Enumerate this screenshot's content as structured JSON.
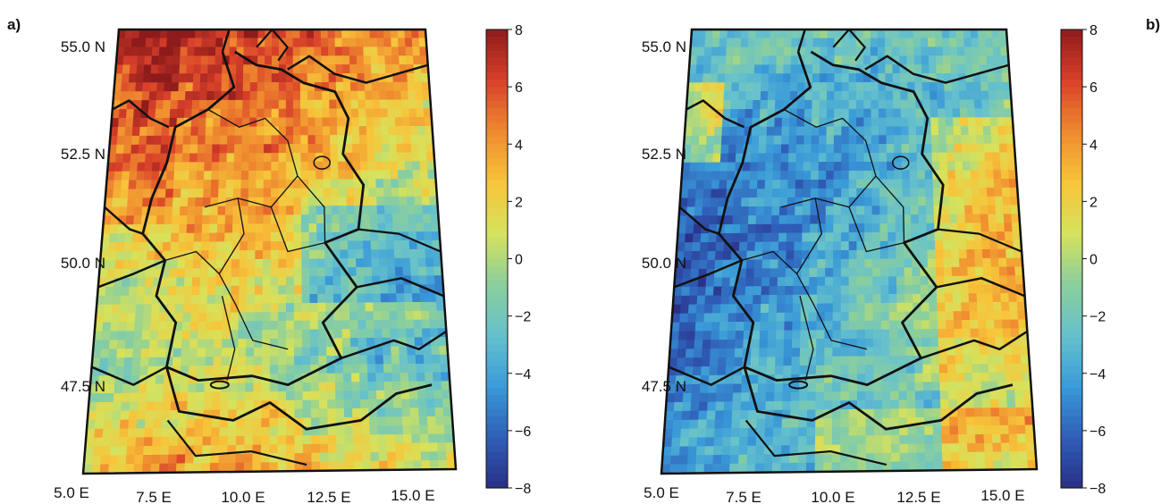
{
  "panels": [
    {
      "label": "a)",
      "lat_labels": [
        "55.0 N",
        "52.5 N",
        "50.0 N",
        "47.5 N"
      ],
      "lon_labels": [
        "5.0 E",
        "7.5 E",
        "10.0 E",
        "12.5 E",
        "15.0 E"
      ],
      "pattern": "warm-north"
    },
    {
      "label": "b)",
      "lat_labels": [
        "55.0 N",
        "52.5 N",
        "50.0 N",
        "47.5 N"
      ],
      "lon_labels": [
        "5.0 E",
        "7.5 E",
        "10.0 E",
        "12.5 E",
        "15.0 E"
      ],
      "pattern": "cool-west"
    }
  ],
  "colorbar": {
    "ticks": [
      "8",
      "6",
      "4",
      "2",
      "0",
      "−2",
      "−4",
      "−6",
      "−8"
    ],
    "min": -8,
    "max": 8,
    "colors": [
      "#2a2f86",
      "#2f5fb8",
      "#3a9bd8",
      "#66c1cc",
      "#8ccf9c",
      "#d6e25c",
      "#f7c43a",
      "#ef8a2f",
      "#d8402a",
      "#8e1b1b"
    ]
  }
}
